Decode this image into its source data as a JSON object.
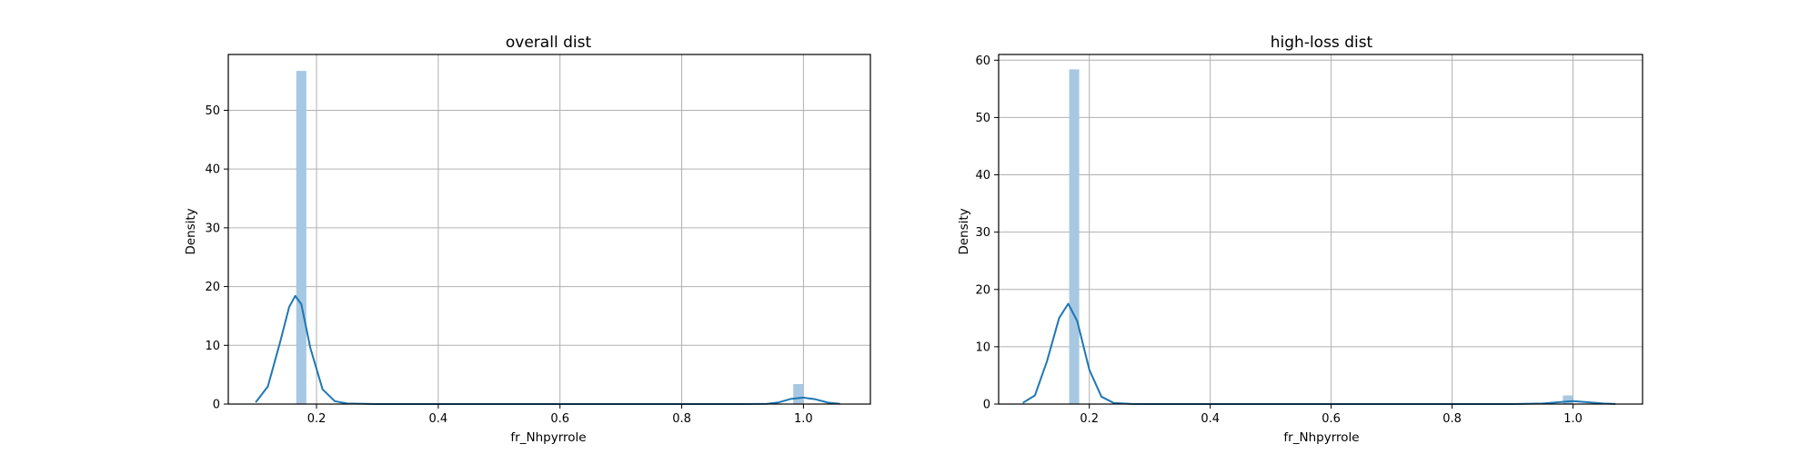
{
  "chart_data": [
    {
      "type": "histogram",
      "title": "overall dist",
      "xlabel": "fr_Nhpyrrole",
      "ylabel": "Density",
      "xlim": [
        0.055,
        1.11
      ],
      "ylim": [
        0,
        59.5
      ],
      "xticks": [
        0.2,
        0.4,
        0.6,
        0.8,
        1.0
      ],
      "xtick_labels": [
        "0.2",
        "0.4",
        "0.6",
        "0.8",
        "1.0"
      ],
      "yticks": [
        0,
        10,
        20,
        30,
        40,
        50
      ],
      "ytick_labels": [
        "0",
        "10",
        "20",
        "30",
        "40",
        "50"
      ],
      "grid": true,
      "bar_color": "#a6c8e2",
      "line_color": "#1f77b4",
      "bars": [
        {
          "x0": 0.1667,
          "x1": 0.1833,
          "value": 56.7
        },
        {
          "x0": 0.9833,
          "x1": 1.0,
          "value": 3.4
        }
      ],
      "kde": {
        "x": [
          0.1,
          0.12,
          0.14,
          0.155,
          0.165,
          0.175,
          0.19,
          0.21,
          0.23,
          0.25,
          0.3,
          0.5,
          0.7,
          0.9,
          0.94,
          0.96,
          0.98,
          1.0,
          1.02,
          1.04,
          1.06
        ],
        "y": [
          0.3,
          3.0,
          10.5,
          16.5,
          18.4,
          17.0,
          9.5,
          2.5,
          0.5,
          0.1,
          0.0,
          0.0,
          0.0,
          0.0,
          0.05,
          0.3,
          0.9,
          1.1,
          0.8,
          0.25,
          0.05
        ]
      }
    },
    {
      "type": "histogram",
      "title": "high-loss dist",
      "xlabel": "fr_Nhpyrrole",
      "ylabel": "Density",
      "xlim": [
        0.05,
        1.115
      ],
      "ylim": [
        0,
        61
      ],
      "xticks": [
        0.2,
        0.4,
        0.6,
        0.8,
        1.0
      ],
      "xtick_labels": [
        "0.2",
        "0.4",
        "0.6",
        "0.8",
        "1.0"
      ],
      "yticks": [
        0,
        10,
        20,
        30,
        40,
        50,
        60
      ],
      "ytick_labels": [
        "0",
        "10",
        "20",
        "30",
        "40",
        "50",
        "60"
      ],
      "grid": true,
      "bar_color": "#a6c8e2",
      "line_color": "#1f77b4",
      "bars": [
        {
          "x0": 0.1667,
          "x1": 0.1833,
          "value": 58.4
        },
        {
          "x0": 0.9833,
          "x1": 1.0,
          "value": 1.5
        }
      ],
      "kde": {
        "x": [
          0.09,
          0.11,
          0.13,
          0.15,
          0.165,
          0.18,
          0.2,
          0.22,
          0.24,
          0.27,
          0.3,
          0.5,
          0.7,
          0.9,
          0.95,
          0.98,
          1.0,
          1.02,
          1.05,
          1.07
        ],
        "y": [
          0.2,
          1.5,
          7.5,
          15.0,
          17.5,
          14.5,
          6.0,
          1.3,
          0.2,
          0.02,
          0.0,
          0.0,
          0.0,
          0.0,
          0.1,
          0.35,
          0.5,
          0.35,
          0.1,
          0.02
        ]
      }
    }
  ]
}
